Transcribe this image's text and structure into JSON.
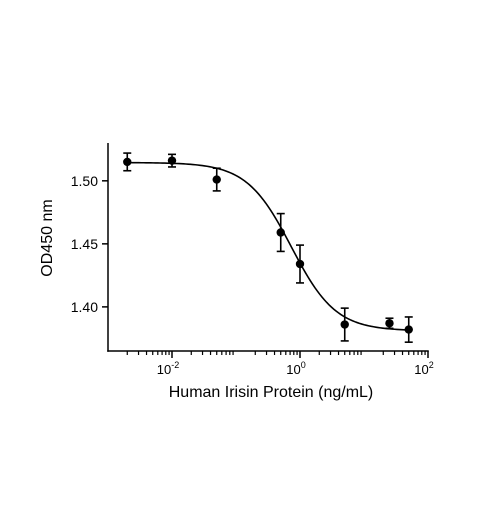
{
  "chart_data": {
    "type": "scatter",
    "xlabel": "Human Irisin Protein (ng/mL)",
    "ylabel": "OD450 nm",
    "x_scale": "log",
    "xlim": [
      0.001,
      100
    ],
    "ylim": [
      1.365,
      1.53
    ],
    "grid": false,
    "y_ticks": [
      {
        "value": 1.4,
        "label": "1.40"
      },
      {
        "value": 1.45,
        "label": "1.45"
      },
      {
        "value": 1.5,
        "label": "1.50"
      }
    ],
    "x_ticks": [
      {
        "value": 0.01,
        "base": "10",
        "exp": "-2"
      },
      {
        "value": 1,
        "base": "10",
        "exp": "0"
      },
      {
        "value": 100,
        "base": "10",
        "exp": "2"
      }
    ],
    "points": [
      {
        "x": 0.002,
        "y": 1.515,
        "err": 0.007
      },
      {
        "x": 0.01,
        "y": 1.516,
        "err": 0.005
      },
      {
        "x": 0.05,
        "y": 1.501,
        "err": 0.009
      },
      {
        "x": 0.5,
        "y": 1.459,
        "err": 0.015
      },
      {
        "x": 1,
        "y": 1.434,
        "err": 0.015
      },
      {
        "x": 5,
        "y": 1.386,
        "err": 0.013
      },
      {
        "x": 25,
        "y": 1.387,
        "err": 0.004
      },
      {
        "x": 50,
        "y": 1.382,
        "err": 0.01
      }
    ],
    "fit_curve": {
      "model": "4PL",
      "top": 1.5145,
      "bottom": 1.381,
      "ec50": 0.73,
      "hill": 1.25
    },
    "colors": {
      "marks": "#000000",
      "background": "#ffffff"
    }
  }
}
